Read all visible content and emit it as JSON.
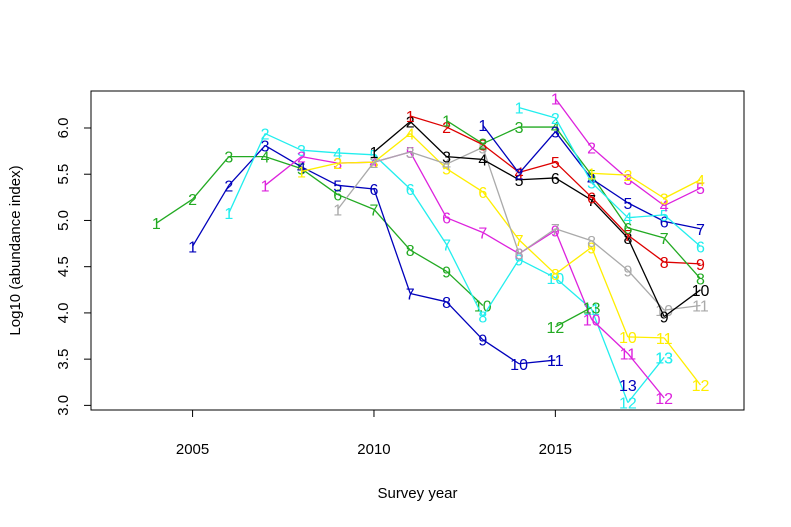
{
  "chart_data": {
    "type": "line",
    "title": "",
    "xlabel": "Survey year",
    "ylabel": "Log10 (abundance index)",
    "xlim": [
      2002.2,
      2020.2
    ],
    "ylim": [
      2.95,
      6.4
    ],
    "xticks": [
      2005,
      2010,
      2015
    ],
    "yticks": [
      3.0,
      3.5,
      4.0,
      4.5,
      5.0,
      5.5,
      6.0
    ],
    "ytick_labels": [
      "3.0",
      "3.5",
      "4.0",
      "4.5",
      "5.0",
      "5.5",
      "6.0"
    ],
    "grid": false,
    "legend": "none",
    "series": [
      {
        "color": "#22aa22",
        "x": [
          2004,
          2005,
          2006,
          2007,
          2008,
          2009,
          2010,
          2011,
          2012,
          2013
        ],
        "y": [
          4.97,
          5.23,
          5.69,
          5.69,
          5.56,
          5.28,
          5.12,
          4.68,
          4.45,
          4.08
        ]
      },
      {
        "color": "#0000bb",
        "x": [
          2005,
          2006,
          2007,
          2008,
          2009,
          2010,
          2011,
          2012,
          2013,
          2014,
          2015
        ],
        "y": [
          4.72,
          5.38,
          5.81,
          5.58,
          5.38,
          5.34,
          4.21,
          4.12,
          3.71,
          3.45,
          3.49
        ]
      },
      {
        "color": "#22eeee",
        "x": [
          2006,
          2007,
          2008,
          2009,
          2010,
          2011,
          2012,
          2013,
          2014,
          2015,
          2016,
          2017,
          2018
        ],
        "y": [
          5.08,
          5.94,
          5.76,
          5.73,
          5.71,
          5.34,
          4.74,
          3.96,
          4.58,
          4.38,
          4.04,
          3.03,
          3.52
        ]
      },
      {
        "color": "#dd22dd",
        "x": [
          2007,
          2008,
          2009,
          2010,
          2011,
          2012,
          2013,
          2014,
          2015,
          2016,
          2017,
          2018
        ],
        "y": [
          5.38,
          5.69,
          5.62,
          5.63,
          5.74,
          5.03,
          4.87,
          4.64,
          4.89,
          3.93,
          3.56,
          3.08
        ]
      },
      {
        "color": "#ffee00",
        "x": [
          2008,
          2009,
          2010,
          2011,
          2012,
          2013,
          2014,
          2015,
          2016,
          2017,
          2018,
          2019
        ],
        "y": [
          5.53,
          5.62,
          5.63,
          5.94,
          5.56,
          5.31,
          4.79,
          4.42,
          4.71,
          3.74,
          3.73,
          3.22
        ]
      },
      {
        "color": "#aaaaaa",
        "x": [
          2009,
          2010,
          2011,
          2012,
          2013,
          2014,
          2015,
          2016,
          2017,
          2018,
          2019
        ],
        "y": [
          5.12,
          5.63,
          5.74,
          5.61,
          5.79,
          4.64,
          4.91,
          4.78,
          4.46,
          4.03,
          4.08
        ]
      },
      {
        "color": "#000000",
        "x": [
          2010,
          2011,
          2012,
          2013,
          2014,
          2015,
          2016,
          2017,
          2018,
          2019
        ],
        "y": [
          5.74,
          6.07,
          5.69,
          5.66,
          5.44,
          5.46,
          5.22,
          4.81,
          3.96,
          4.25
        ]
      },
      {
        "color": "#dd0000",
        "x": [
          2011,
          2012,
          2013,
          2014,
          2015,
          2016,
          2017,
          2018,
          2019
        ],
        "y": [
          6.13,
          6.01,
          5.82,
          5.52,
          5.63,
          5.25,
          4.84,
          4.55,
          4.53
        ]
      },
      {
        "color": "#22aa22",
        "x": [
          2012,
          2013,
          2014,
          2015,
          2016,
          2017,
          2018,
          2019
        ],
        "y": [
          6.08,
          5.83,
          6.01,
          6.01,
          5.49,
          4.92,
          4.81,
          4.37
        ]
      },
      {
        "color": "#0000bb",
        "x": [
          2013,
          2014,
          2015,
          2016,
          2017,
          2018,
          2019
        ],
        "y": [
          6.03,
          5.51,
          5.96,
          5.45,
          5.19,
          4.99,
          4.91
        ]
      },
      {
        "color": "#22eeee",
        "x": [
          2014,
          2015,
          2016,
          2017,
          2018,
          2019
        ],
        "y": [
          6.22,
          6.11,
          5.41,
          5.03,
          5.06,
          4.72
        ]
      },
      {
        "color": "#dd22dd",
        "x": [
          2015,
          2016,
          2017,
          2018,
          2019
        ],
        "y": [
          6.32,
          5.79,
          5.45,
          5.16,
          5.35
        ]
      },
      {
        "color": "#ffee00",
        "x": [
          2016,
          2017,
          2018,
          2019
        ],
        "y": [
          5.51,
          5.49,
          5.24,
          5.44
        ]
      },
      {
        "color": "#22aa22",
        "x": [
          2015,
          2016
        ],
        "y": [
          3.85,
          4.06
        ]
      },
      {
        "color": "#0000bb",
        "x": [
          2017
        ],
        "y": [
          3.22
        ]
      },
      {
        "color": "#22eeee",
        "x": [
          2018
        ],
        "y": [
          3.52
        ]
      }
    ],
    "labeled_series": [
      {
        "color": "#22aa22",
        "labels": [
          "1",
          "2",
          "3",
          "4",
          "5",
          "6",
          "7",
          "8",
          "9",
          "10"
        ]
      },
      {
        "color": "#0000bb",
        "labels": [
          "1",
          "2",
          "3",
          "4",
          "5",
          "6",
          "7",
          "8",
          "9",
          "10",
          "11"
        ]
      },
      {
        "color": "#22eeee",
        "labels": [
          "1",
          "2",
          "3",
          "4",
          "5",
          "6",
          "7",
          "8",
          "9",
          "10",
          "11",
          "12",
          "13"
        ]
      },
      {
        "color": "#dd22dd",
        "labels": [
          "1",
          "2",
          "3",
          "4",
          "5",
          "6",
          "7",
          "8",
          "9",
          "10",
          "11",
          "12"
        ]
      },
      {
        "color": "#ffee00",
        "labels": [
          "1",
          "2",
          "3",
          "4",
          "5",
          "6",
          "7",
          "8",
          "9",
          "10",
          "11",
          "12"
        ]
      },
      {
        "color": "#aaaaaa",
        "labels": [
          "1",
          "2",
          "3",
          "4",
          "5",
          "6",
          "7",
          "8",
          "9",
          "10",
          "11"
        ]
      },
      {
        "color": "#000000",
        "labels": [
          "1",
          "2",
          "3",
          "4",
          "5",
          "6",
          "7",
          "8",
          "9",
          "10"
        ]
      },
      {
        "color": "#dd0000",
        "labels": [
          "1",
          "2",
          "3",
          "4",
          "5",
          "6",
          "7",
          "8",
          "9"
        ]
      },
      {
        "color": "#22aa22",
        "labels": [
          "1",
          "2",
          "3",
          "4",
          "5",
          "6",
          "7",
          "8"
        ]
      },
      {
        "color": "#0000bb",
        "labels": [
          "1",
          "2",
          "3",
          "4",
          "5",
          "6",
          "7"
        ]
      },
      {
        "color": "#22eeee",
        "labels": [
          "1",
          "2",
          "3",
          "4",
          "5",
          "6"
        ]
      },
      {
        "color": "#dd22dd",
        "labels": [
          "1",
          "2",
          "3",
          "4",
          "5"
        ]
      },
      {
        "color": "#ffee00",
        "labels": [
          "1",
          "2",
          "3",
          "4"
        ]
      },
      {
        "color": "#22aa22",
        "labels": [
          "12",
          "13"
        ]
      },
      {
        "color": "#0000bb",
        "labels": [
          "13"
        ]
      },
      {
        "color": "#22eeee",
        "labels": [
          "13"
        ]
      }
    ]
  }
}
